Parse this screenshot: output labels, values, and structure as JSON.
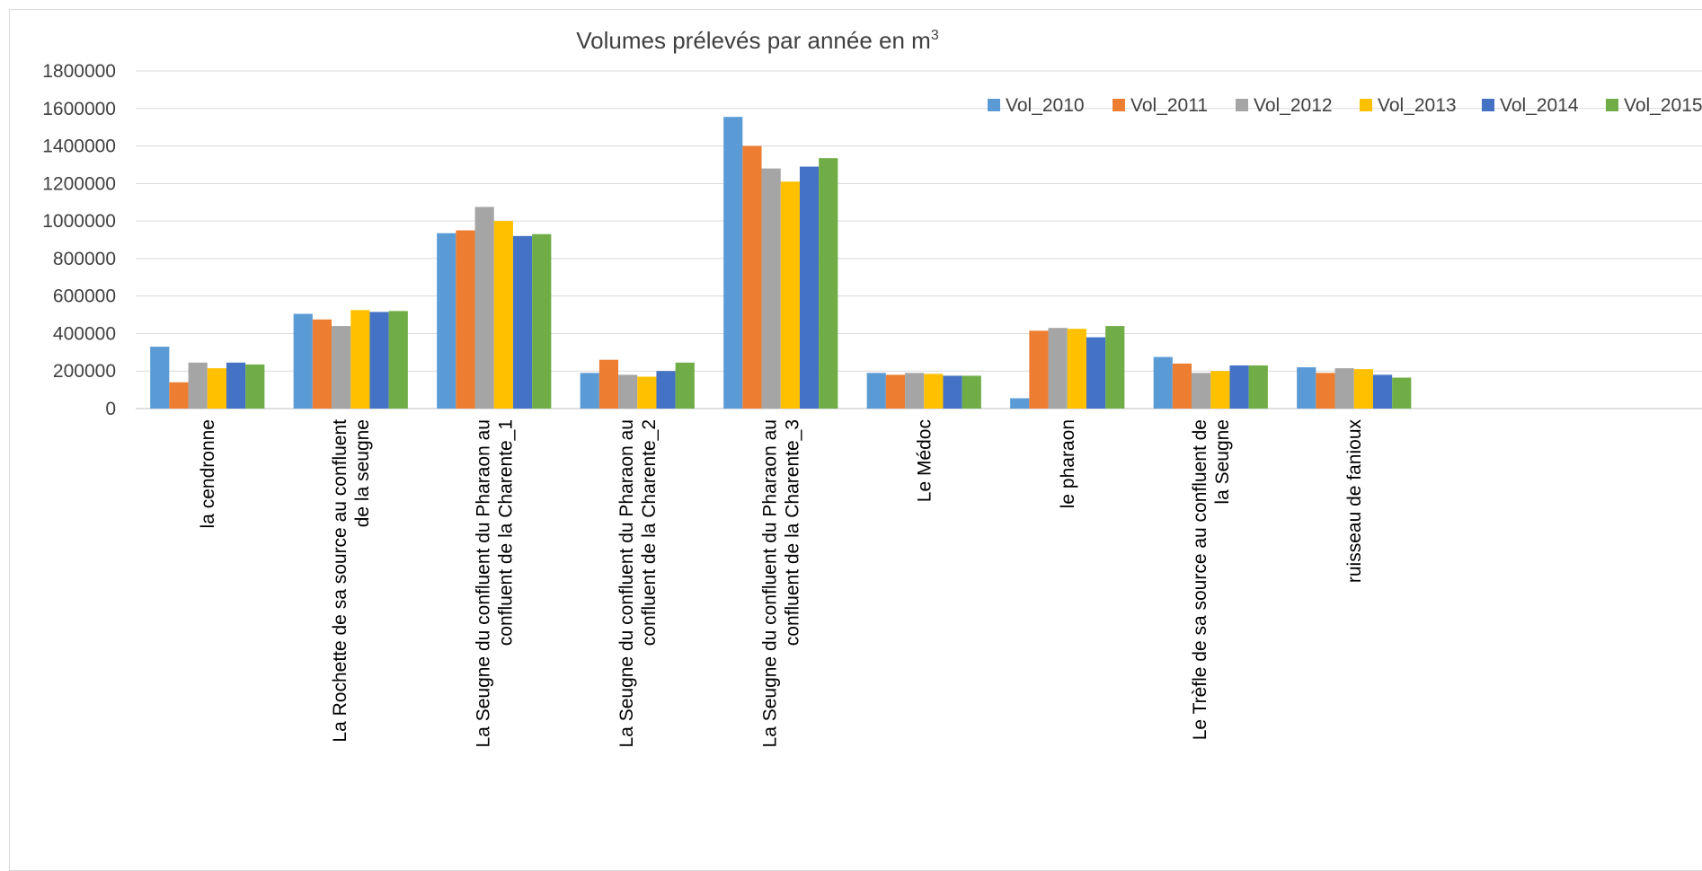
{
  "chart_data": {
    "type": "bar",
    "title": "Volumes prélevés par année en m",
    "title_superscript": "3",
    "xlabel": "",
    "ylabel": "",
    "ylim": [
      0,
      1800000
    ],
    "yticks": [
      "0",
      "200000",
      "400000",
      "600000",
      "800000",
      "1000000",
      "1200000",
      "1400000",
      "1600000",
      "1800000"
    ],
    "grid": true,
    "legend_position": "top-right",
    "categories": [
      [
        "la cendronne"
      ],
      [
        "La Rochette de sa source au confluent",
        "de la seugne"
      ],
      [
        "La Seugne du confluent du Pharaon au",
        "confluent de la Charente_1"
      ],
      [
        "La Seugne du confluent du Pharaon au",
        "confluent de la Charente_2"
      ],
      [
        "La Seugne du confluent du Pharaon au",
        "confluent de la Charente_3"
      ],
      [
        "Le Médoc"
      ],
      [
        "le pharaon"
      ],
      [
        "Le Trèfle de sa source au confluent de",
        "la Seugne"
      ],
      [
        "ruisseau de fanioux"
      ]
    ],
    "series": [
      {
        "name": "Vol_2010",
        "color": "#5B9BD5",
        "values": [
          330000,
          505000,
          935000,
          190000,
          1555000,
          190000,
          55000,
          275000,
          220000
        ]
      },
      {
        "name": "Vol_2011",
        "color": "#ED7D31",
        "values": [
          140000,
          475000,
          950000,
          260000,
          1400000,
          180000,
          415000,
          240000,
          190000
        ]
      },
      {
        "name": "Vol_2012",
        "color": "#A5A5A5",
        "values": [
          245000,
          440000,
          1075000,
          180000,
          1280000,
          190000,
          430000,
          190000,
          215000
        ]
      },
      {
        "name": "Vol_2013",
        "color": "#FFC000",
        "values": [
          215000,
          525000,
          1000000,
          170000,
          1210000,
          185000,
          425000,
          200000,
          210000
        ]
      },
      {
        "name": "Vol_2014",
        "color": "#4472C4",
        "values": [
          245000,
          515000,
          920000,
          200000,
          1290000,
          175000,
          380000,
          230000,
          180000
        ]
      },
      {
        "name": "Vol_2015",
        "color": "#70AD47",
        "values": [
          235000,
          520000,
          930000,
          245000,
          1335000,
          175000,
          440000,
          230000,
          165000
        ]
      }
    ]
  }
}
